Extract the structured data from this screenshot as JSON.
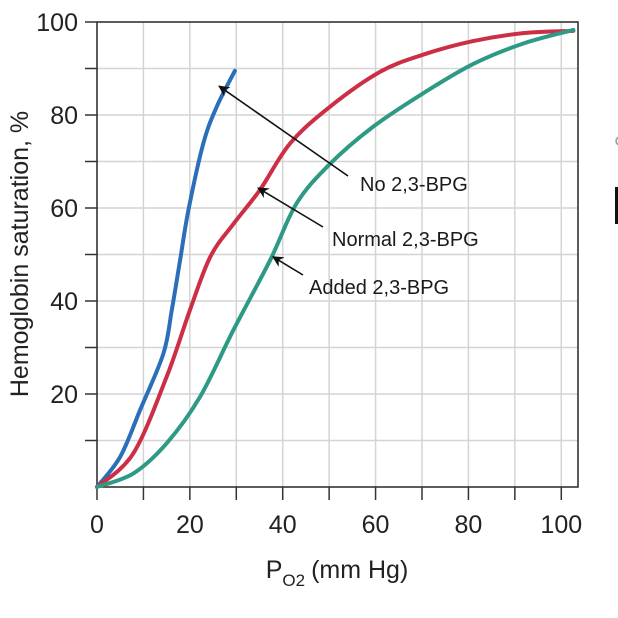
{
  "chart_data": {
    "type": "line",
    "xlabel": "P",
    "xlabel_sub": "O2",
    "xlabel_unit": "(mm Hg)",
    "ylabel": "Hemoglobin saturation, %",
    "xlim": [
      0,
      103.6
    ],
    "ylim": [
      0,
      100
    ],
    "x_ticks": [
      0,
      20,
      40,
      60,
      80,
      100
    ],
    "y_ticks": [
      20,
      40,
      60,
      80,
      100
    ],
    "grid": true,
    "grid_step": 10,
    "series": [
      {
        "name": "No 2,3-BPG",
        "color": "#2a6fb8",
        "x": [
          0,
          5,
          9.3,
          14.3,
          16.1,
          17.9,
          19.7,
          22.9,
          25.8,
          29.7
        ],
        "y": [
          0,
          6.5,
          16.6,
          28.7,
          38,
          48.8,
          59.6,
          73.9,
          81.8,
          89.5
        ]
      },
      {
        "name": "Normal 2,3-BPG",
        "color": "#cc2f45",
        "x": [
          0,
          7.8,
          15,
          20,
          24.4,
          29.4,
          35.1,
          41.6,
          50.2,
          61,
          70.3,
          81,
          91.8,
          102.6
        ],
        "y": [
          0,
          7.2,
          23.7,
          38,
          49.5,
          56.6,
          63.9,
          73.9,
          81.8,
          89.3,
          93,
          95.9,
          97.6,
          98.1
        ]
      },
      {
        "name": "Added 2,3-BPG",
        "color": "#2e9a86",
        "x": [
          0,
          7.8,
          15,
          22.2,
          29.4,
          37.3,
          43,
          50.2,
          59.5,
          70.3,
          81.1,
          91.9,
          102.6
        ],
        "y": [
          0,
          2.9,
          9.4,
          19.4,
          33.8,
          48.8,
          61,
          69.5,
          77.5,
          84.7,
          91,
          95.4,
          98.3
        ]
      }
    ],
    "annotations": [
      {
        "text": "No 2,3-BPG",
        "points_to": [
          26.3,
          86.2
        ]
      },
      {
        "text": "Normal 2,3-BPG",
        "points_to": [
          34.7,
          64.3
        ]
      },
      {
        "text": "Added 2,3-BPG",
        "points_to": [
          37.9,
          49.5
        ]
      }
    ]
  }
}
